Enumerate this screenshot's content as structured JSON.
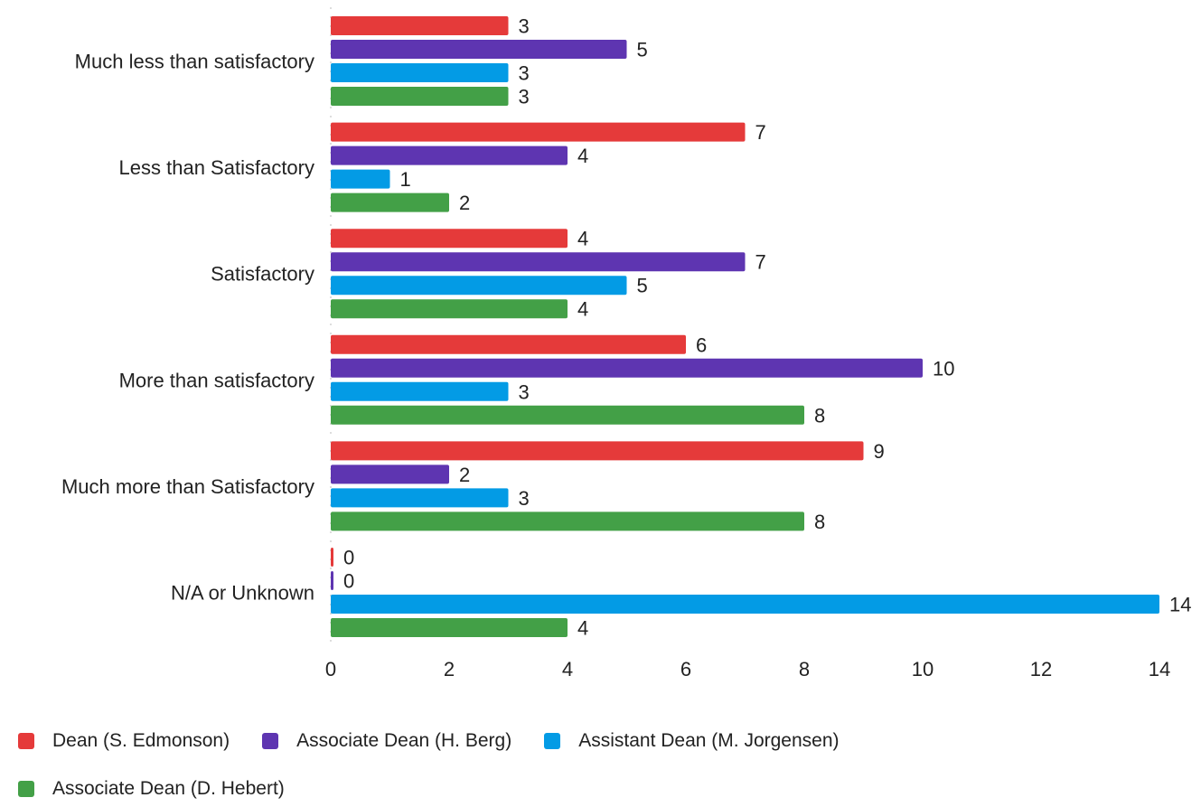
{
  "chart_data": {
    "type": "bar",
    "orientation": "horizontal",
    "categories": [
      "Much less than satisfactory",
      "Less than Satisfactory",
      "Satisfactory",
      "More than satisfactory",
      "Much more than Satisfactory",
      "N/A or Unknown"
    ],
    "series": [
      {
        "name": "Dean (S. Edmonson)",
        "color": "#e53a3a",
        "values": [
          3,
          7,
          4,
          6,
          9,
          0
        ]
      },
      {
        "name": "Associate Dean (H. Berg)",
        "color": "#5e35b1",
        "values": [
          5,
          4,
          7,
          10,
          2,
          0
        ]
      },
      {
        "name": "Assistant Dean (M. Jorgensen)",
        "color": "#039be5",
        "values": [
          3,
          1,
          5,
          3,
          3,
          14
        ]
      },
      {
        "name": "Associate Dean (D. Hebert)",
        "color": "#43a047",
        "values": [
          3,
          2,
          4,
          8,
          8,
          4
        ]
      }
    ],
    "xlim": [
      0,
      14
    ],
    "xticks": [
      0,
      2,
      4,
      6,
      8,
      10,
      12,
      14
    ],
    "grid": false,
    "legend_position": "bottom-left"
  }
}
